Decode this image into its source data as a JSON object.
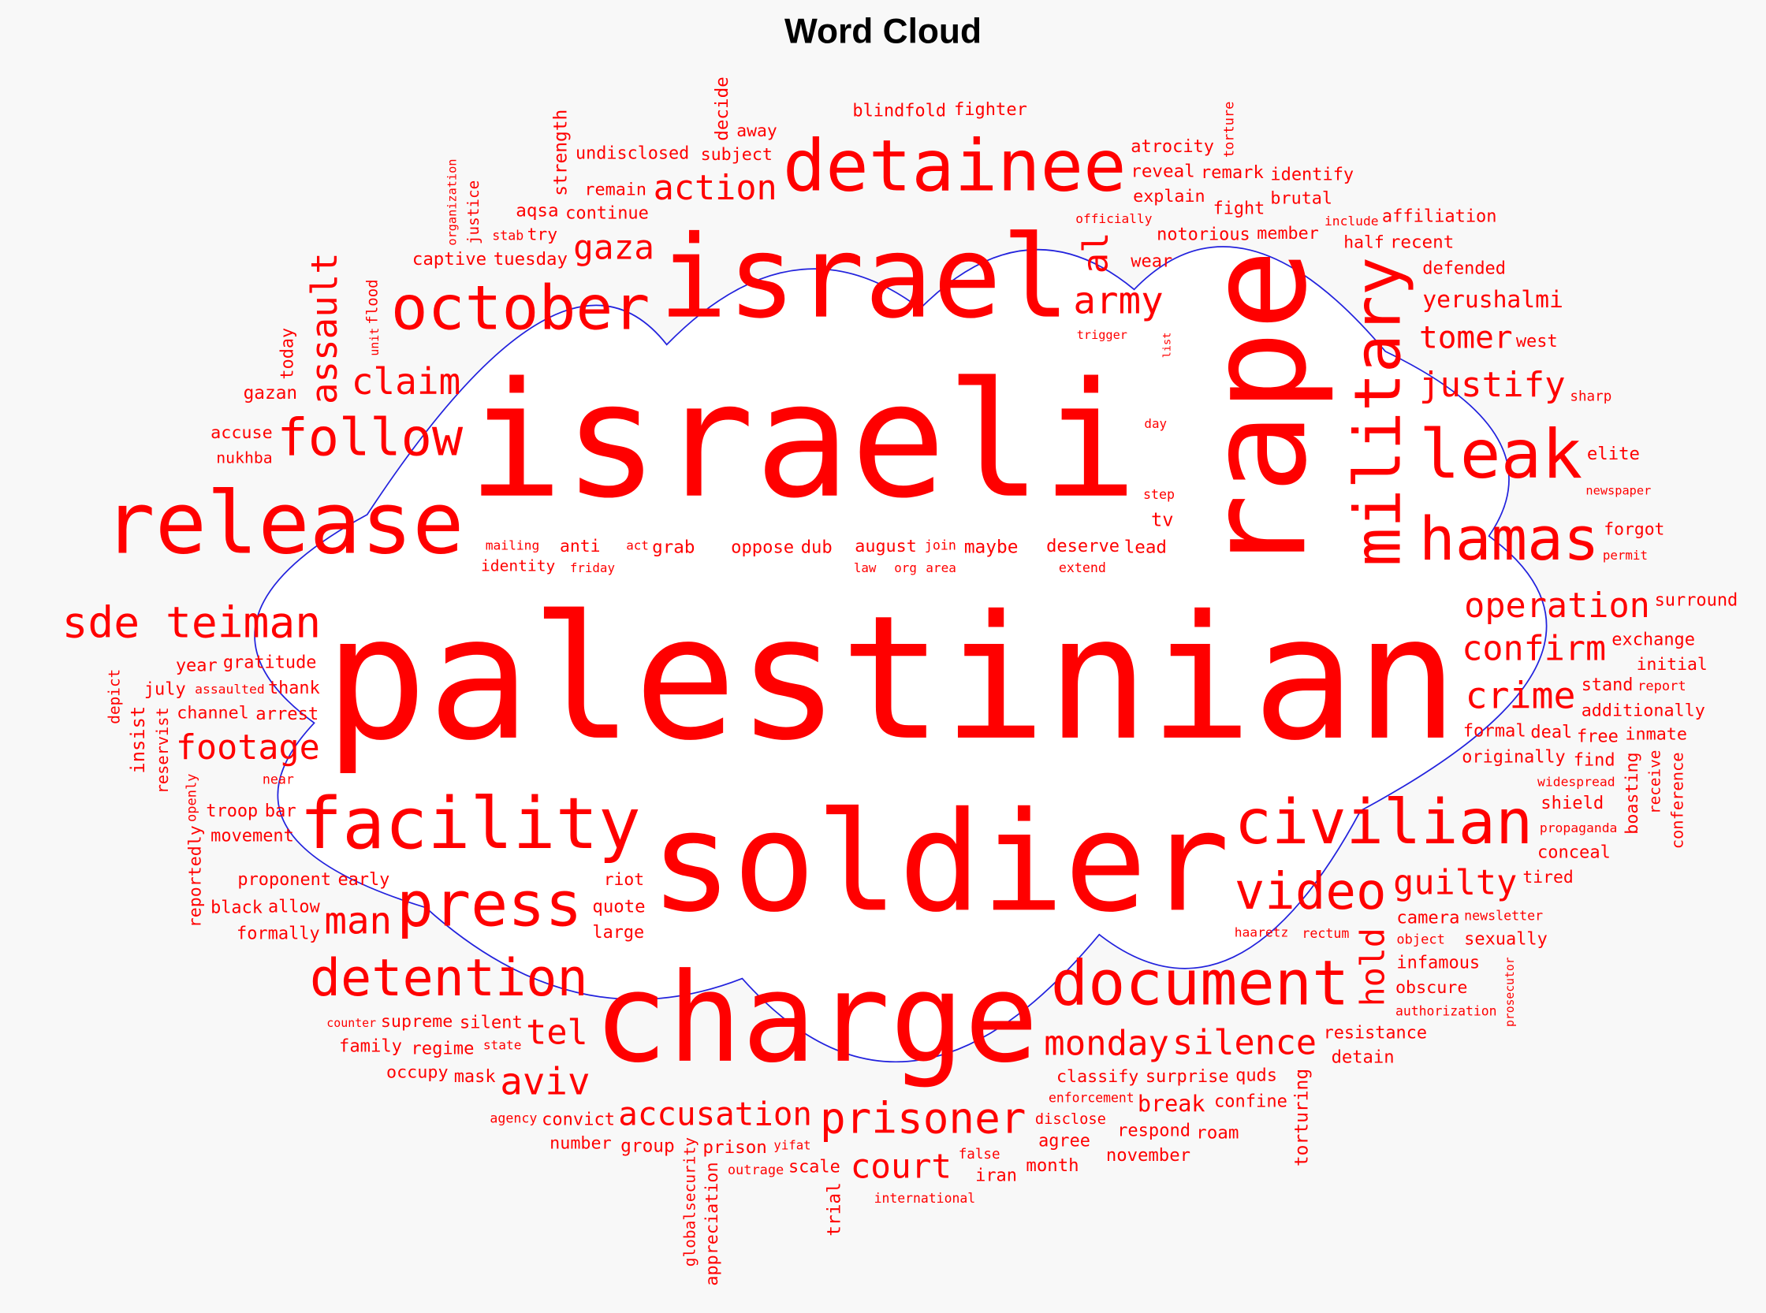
{
  "chart_data": {
    "type": "wordcloud",
    "title": "Word Cloud",
    "shape": "cloud",
    "colors": {
      "word": "#ff0000",
      "outline": "#2222dd",
      "mask_fill": "#ffffff",
      "background": "#f8f8f8"
    },
    "words": [
      "palestinian",
      "soldier",
      "israeli",
      "israel",
      "charge",
      "rape",
      "release",
      "detainee",
      "october",
      "military",
      "hamas",
      "leak",
      "civilian",
      "document",
      "facility",
      "press",
      "detention",
      "follow",
      "sde teiman",
      "prisoner",
      "video",
      "accusation",
      "operation",
      "justify",
      "confirm",
      "crime",
      "army",
      "gaza",
      "action",
      "claim",
      "footage",
      "guilty",
      "man",
      "tel",
      "aviv",
      "monday",
      "court",
      "silence",
      "tomer",
      "yerushalmi",
      "hold",
      "assault",
      "al",
      "officially",
      "notorious",
      "wear",
      "member",
      "subject",
      "away",
      "explain",
      "trigger",
      "fight",
      "half",
      "reveal",
      "continue",
      "recent",
      "defended",
      "include",
      "tuesday",
      "try",
      "captive",
      "stab",
      "brutal",
      "deserve",
      "maybe",
      "lead",
      "extend",
      "mailing",
      "anti",
      "west",
      "sharp",
      "day",
      "oppose",
      "act",
      "grab",
      "join",
      "august",
      "dub",
      "affiliation",
      "elite",
      "identity",
      "remain",
      "blindfold",
      "remark",
      "identify",
      "nukhba",
      "aqsa",
      "accuse",
      "gazan",
      "undisclosed",
      "fighter",
      "atrocity",
      "formal",
      "originally",
      "newspaper",
      "gratitude",
      "haaretz",
      "permit",
      "forgot",
      "deal",
      "tv",
      "thank",
      "stand",
      "camera",
      "riot",
      "arrest",
      "law",
      "classify",
      "assaulted",
      "area",
      "widespread",
      "additionally",
      "exchange",
      "initial",
      "free",
      "quote",
      "year",
      "surround",
      "find",
      "enforcement",
      "channel",
      "shield",
      "large",
      "inmate",
      "july",
      "rectum",
      "early",
      "surprise",
      "friday",
      "object",
      "report",
      "near",
      "bar",
      "silent",
      "disclose",
      "break",
      "infamous",
      "newsletter",
      "propaganda",
      "org",
      "agree",
      "step",
      "resistance",
      "yifat",
      "false",
      "quds",
      "movement",
      "conceal",
      "tired",
      "state",
      "sexually",
      "proponent",
      "allow",
      "formally",
      "troop",
      "black",
      "supreme",
      "scale",
      "respond",
      "confine",
      "obscure",
      "detain",
      "regime",
      "mask",
      "november",
      "authorization",
      "month",
      "counter",
      "occupy",
      "family",
      "roam",
      "convict",
      "prison",
      "group",
      "outrage",
      "agency",
      "number",
      "iran",
      "international",
      "list",
      "decide",
      "unit",
      "today",
      "flood",
      "justice",
      "organization",
      "strength",
      "torture",
      "reservist",
      "openly",
      "insist",
      "reportedly",
      "boasting",
      "receive",
      "conference",
      "depict",
      "torturing",
      "prosecutor",
      "globalsecurity",
      "appreciation",
      "trial"
    ]
  }
}
